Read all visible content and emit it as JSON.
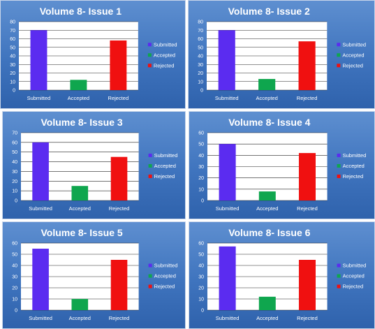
{
  "chart_data": [
    {
      "type": "bar",
      "title": "Volume 8- Issue 1",
      "categories": [
        "Submitted",
        "Accepted",
        "Rejected"
      ],
      "values": [
        70,
        12,
        58
      ],
      "colors": [
        "#5b2cf0",
        "#0fa64e",
        "#f01010"
      ],
      "legend": [
        "Submitted",
        "Accepted",
        "Rejected"
      ],
      "legend_position": "right",
      "ylim": [
        0,
        80
      ],
      "yticks": [
        0,
        10,
        20,
        30,
        40,
        50,
        60,
        70,
        80
      ],
      "grid": true
    },
    {
      "type": "bar",
      "title": "Volume 8- Issue 2",
      "categories": [
        "Submitted",
        "Accepted",
        "Rejected"
      ],
      "values": [
        70,
        13,
        57
      ],
      "colors": [
        "#5b2cf0",
        "#0fa64e",
        "#f01010"
      ],
      "legend": [
        "Submitted",
        "Accepted",
        "Rejected"
      ],
      "legend_position": "right",
      "ylim": [
        0,
        80
      ],
      "yticks": [
        0,
        10,
        20,
        30,
        40,
        50,
        60,
        70,
        80
      ],
      "grid": true
    },
    {
      "type": "bar",
      "title": "Volume 8- Issue 3",
      "categories": [
        "Submitted",
        "Accepted",
        "Rejected"
      ],
      "values": [
        60,
        15,
        45
      ],
      "colors": [
        "#5b2cf0",
        "#0fa64e",
        "#f01010"
      ],
      "legend": [
        "Submitted",
        "Accepted",
        "Rejected"
      ],
      "legend_position": "right",
      "ylim": [
        0,
        70
      ],
      "yticks": [
        0,
        10,
        20,
        30,
        40,
        50,
        60,
        70
      ],
      "grid": true
    },
    {
      "type": "bar",
      "title": "Volume 8- Issue 4",
      "categories": [
        "Submitted",
        "Accepted",
        "Rejected"
      ],
      "values": [
        50,
        8,
        42
      ],
      "colors": [
        "#5b2cf0",
        "#0fa64e",
        "#f01010"
      ],
      "legend": [
        "Submitted",
        "Accepted",
        "Rejected"
      ],
      "legend_position": "right",
      "ylim": [
        0,
        60
      ],
      "yticks": [
        0,
        10,
        20,
        30,
        40,
        50,
        60
      ],
      "grid": true
    },
    {
      "type": "bar",
      "title": "Volume 8- Issue 5",
      "categories": [
        "Submitted",
        "Accepted",
        "Rejected"
      ],
      "values": [
        55,
        10,
        45
      ],
      "colors": [
        "#5b2cf0",
        "#0fa64e",
        "#f01010"
      ],
      "legend": [
        "Submitted",
        "Accepted",
        "Rejected"
      ],
      "legend_position": "right",
      "ylim": [
        0,
        60
      ],
      "yticks": [
        0,
        10,
        20,
        30,
        40,
        50,
        60
      ],
      "grid": true
    },
    {
      "type": "bar",
      "title": "Volume 8- Issue 6",
      "categories": [
        "Submitted",
        "Accepted",
        "Rejected"
      ],
      "values": [
        57,
        12,
        45
      ],
      "colors": [
        "#5b2cf0",
        "#0fa64e",
        "#f01010"
      ],
      "legend": [
        "Submitted",
        "Accepted",
        "Rejected"
      ],
      "legend_position": "right",
      "ylim": [
        0,
        60
      ],
      "yticks": [
        0,
        10,
        20,
        30,
        40,
        50,
        60
      ],
      "grid": true
    }
  ]
}
